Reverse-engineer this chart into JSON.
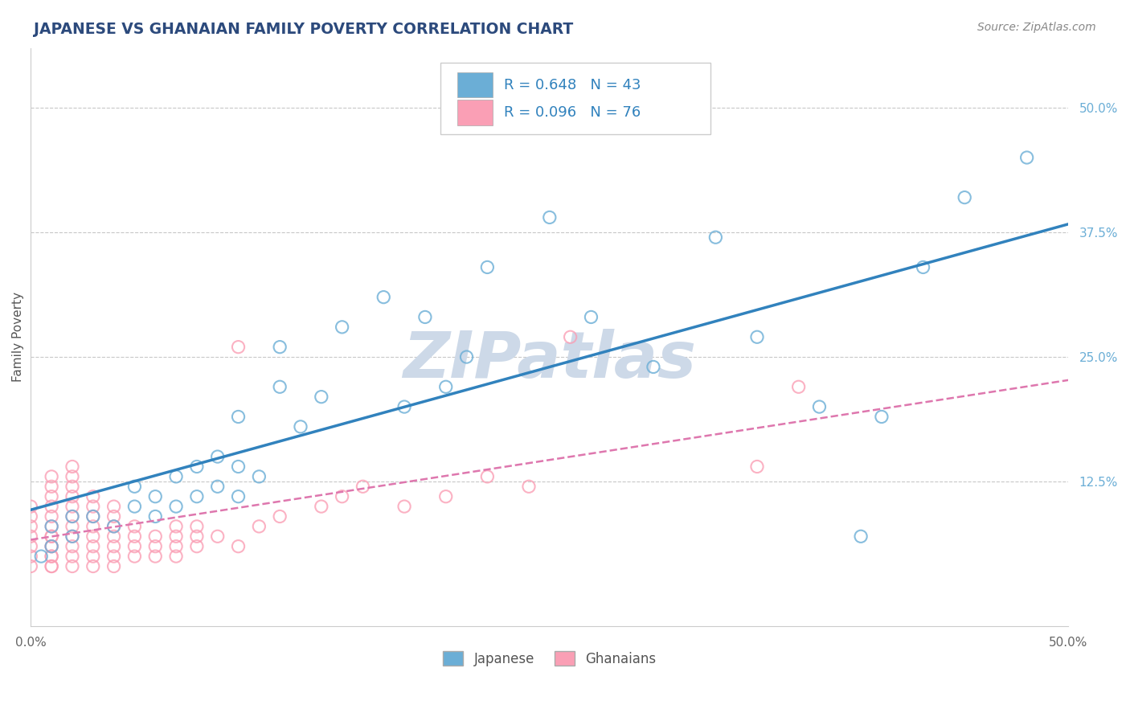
{
  "title": "JAPANESE VS GHANAIAN FAMILY POVERTY CORRELATION CHART",
  "source": "Source: ZipAtlas.com",
  "ylabel": "Family Poverty",
  "xlim": [
    0.0,
    0.5
  ],
  "ylim": [
    -0.02,
    0.56
  ],
  "ytick_labels_right": [
    "50.0%",
    "37.5%",
    "25.0%",
    "12.5%"
  ],
  "ytick_vals_right": [
    0.5,
    0.375,
    0.25,
    0.125
  ],
  "japanese_R": 0.648,
  "japanese_N": 43,
  "ghanaian_R": 0.096,
  "ghanaian_N": 76,
  "japanese_color": "#6baed6",
  "ghanaian_color": "#fa9fb5",
  "japanese_trend_color": "#3182bd",
  "ghanaian_trend_color": "#de77ae",
  "background_color": "#ffffff",
  "grid_color": "#c8c8c8",
  "title_color": "#2c4a7c",
  "watermark_text": "ZIPatlas",
  "watermark_color": "#cdd9e8",
  "legend_label_japanese": "Japanese",
  "legend_label_ghanaian": "Ghanaians",
  "japanese_scatter_x": [
    0.005,
    0.01,
    0.01,
    0.02,
    0.02,
    0.03,
    0.04,
    0.05,
    0.05,
    0.06,
    0.06,
    0.07,
    0.07,
    0.08,
    0.08,
    0.09,
    0.09,
    0.1,
    0.1,
    0.1,
    0.11,
    0.12,
    0.12,
    0.13,
    0.14,
    0.15,
    0.17,
    0.18,
    0.19,
    0.2,
    0.21,
    0.22,
    0.25,
    0.27,
    0.3,
    0.33,
    0.35,
    0.38,
    0.4,
    0.41,
    0.43,
    0.45,
    0.48
  ],
  "japanese_scatter_y": [
    0.05,
    0.06,
    0.08,
    0.07,
    0.09,
    0.09,
    0.08,
    0.1,
    0.12,
    0.09,
    0.11,
    0.1,
    0.13,
    0.11,
    0.14,
    0.12,
    0.15,
    0.11,
    0.14,
    0.19,
    0.13,
    0.22,
    0.26,
    0.18,
    0.21,
    0.28,
    0.31,
    0.2,
    0.29,
    0.22,
    0.25,
    0.34,
    0.39,
    0.29,
    0.24,
    0.37,
    0.27,
    0.2,
    0.07,
    0.19,
    0.34,
    0.41,
    0.45
  ],
  "ghanaian_scatter_x": [
    0.0,
    0.0,
    0.0,
    0.0,
    0.0,
    0.0,
    0.0,
    0.01,
    0.01,
    0.01,
    0.01,
    0.01,
    0.01,
    0.01,
    0.01,
    0.01,
    0.01,
    0.01,
    0.01,
    0.01,
    0.01,
    0.02,
    0.02,
    0.02,
    0.02,
    0.02,
    0.02,
    0.02,
    0.02,
    0.02,
    0.02,
    0.02,
    0.03,
    0.03,
    0.03,
    0.03,
    0.03,
    0.03,
    0.03,
    0.03,
    0.04,
    0.04,
    0.04,
    0.04,
    0.04,
    0.04,
    0.04,
    0.05,
    0.05,
    0.05,
    0.05,
    0.06,
    0.06,
    0.06,
    0.07,
    0.07,
    0.07,
    0.07,
    0.08,
    0.08,
    0.08,
    0.09,
    0.1,
    0.1,
    0.11,
    0.12,
    0.14,
    0.15,
    0.16,
    0.18,
    0.2,
    0.22,
    0.24,
    0.26,
    0.35,
    0.37
  ],
  "ghanaian_scatter_y": [
    0.04,
    0.05,
    0.06,
    0.07,
    0.08,
    0.09,
    0.1,
    0.04,
    0.05,
    0.06,
    0.07,
    0.08,
    0.09,
    0.1,
    0.11,
    0.12,
    0.13,
    0.04,
    0.05,
    0.06,
    0.07,
    0.04,
    0.05,
    0.06,
    0.07,
    0.08,
    0.09,
    0.1,
    0.11,
    0.12,
    0.13,
    0.14,
    0.04,
    0.05,
    0.06,
    0.07,
    0.08,
    0.09,
    0.1,
    0.11,
    0.04,
    0.05,
    0.06,
    0.07,
    0.08,
    0.09,
    0.1,
    0.05,
    0.06,
    0.07,
    0.08,
    0.05,
    0.06,
    0.07,
    0.05,
    0.06,
    0.07,
    0.08,
    0.06,
    0.07,
    0.08,
    0.07,
    0.06,
    0.26,
    0.08,
    0.09,
    0.1,
    0.11,
    0.12,
    0.1,
    0.11,
    0.13,
    0.12,
    0.27,
    0.14,
    0.22
  ]
}
